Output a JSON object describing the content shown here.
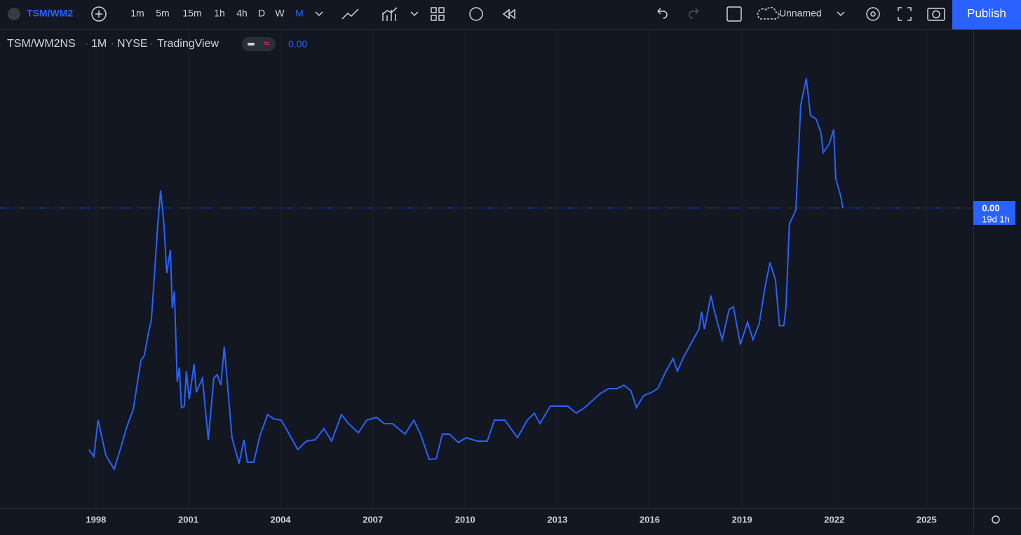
{
  "toolbar": {
    "symbol": "TSM/WM2",
    "intervals": [
      "1m",
      "5m",
      "15m",
      "1h",
      "4h",
      "D",
      "W",
      "M"
    ],
    "active_interval": "M",
    "layout_name": "Unnamed",
    "publish": "Publish"
  },
  "legend": {
    "symbol": "TSM/WM2NS",
    "interval": "1M",
    "exchange": "NYSE",
    "source": "TradingView",
    "value": "0.00"
  },
  "price_label": {
    "value": "0.00",
    "countdown": "19d 1h"
  },
  "chart_data": {
    "type": "line",
    "x": [
      1997.77,
      1997.93,
      1998.07,
      1998.32,
      1998.59,
      1998.8,
      1999.0,
      1999.21,
      1999.37,
      1999.46,
      1999.57,
      1999.73,
      1999.8,
      1999.89,
      2000.01,
      2000.1,
      2000.21,
      2000.3,
      2000.42,
      2000.48,
      2000.55,
      2000.64,
      2000.71,
      2000.78,
      2000.87,
      2000.94,
      2001.03,
      2001.19,
      2001.26,
      2001.46,
      2001.65,
      2001.83,
      2001.94,
      2002.06,
      2002.17,
      2002.26,
      2002.42,
      2002.65,
      2002.81,
      2002.92,
      2003.13,
      2003.33,
      2003.58,
      2003.77,
      2004.02,
      2004.22,
      2004.56,
      2004.84,
      2005.13,
      2005.41,
      2005.66,
      2005.98,
      2006.21,
      2006.53,
      2006.8,
      2007.12,
      2007.37,
      2007.64,
      2008.05,
      2008.33,
      2008.55,
      2008.83,
      2009.06,
      2009.26,
      2009.49,
      2009.78,
      2010.04,
      2010.4,
      2010.72,
      2010.95,
      2011.29,
      2011.7,
      2012.02,
      2012.25,
      2012.43,
      2012.77,
      2013.09,
      2013.34,
      2013.61,
      2013.89,
      2014.14,
      2014.39,
      2014.66,
      2014.94,
      2015.16,
      2015.39,
      2015.57,
      2015.8,
      2016.08,
      2016.26,
      2016.53,
      2016.76,
      2016.9,
      2017.1,
      2017.35,
      2017.6,
      2017.69,
      2017.78,
      2017.99,
      2018.08,
      2018.26,
      2018.36,
      2018.58,
      2018.72,
      2018.95,
      2019.18,
      2019.36,
      2019.56,
      2019.75,
      2019.91,
      2020.09,
      2020.22,
      2020.36,
      2020.43,
      2020.54,
      2020.75,
      2020.91,
      2021.09,
      2021.23,
      2021.41,
      2021.57,
      2021.64,
      2021.84,
      2021.98,
      2022.05,
      2022.21,
      2022.28
    ],
    "series": [
      {
        "name": "TSM/WM2NS",
        "color": "#2962ff",
        "values": [
          83,
          73,
          125,
          75,
          55,
          85,
          115,
          140,
          185,
          210,
          217,
          255,
          267,
          325,
          405,
          453,
          405,
          335,
          368,
          285,
          309,
          180,
          200,
          143,
          145,
          195,
          155,
          205,
          165,
          185,
          97,
          185,
          190,
          175,
          230,
          185,
          100,
          63,
          97,
          65,
          65,
          103,
          133,
          127,
          125,
          110,
          83,
          95,
          97,
          113,
          95,
          133,
          120,
          107,
          125,
          129,
          120,
          120,
          105,
          125,
          105,
          69,
          70,
          105,
          105,
          93,
          100,
          95,
          95,
          125,
          125,
          100,
          125,
          135,
          120,
          145,
          145,
          145,
          135,
          143,
          153,
          163,
          170,
          170,
          175,
          167,
          143,
          160,
          165,
          170,
          195,
          213,
          195,
          215,
          235,
          255,
          280,
          255,
          303,
          285,
          255,
          240,
          283,
          287,
          233,
          265,
          240,
          263,
          315,
          350,
          325,
          260,
          260,
          285,
          405,
          425,
          575,
          613,
          560,
          555,
          535,
          507,
          520,
          540,
          470,
          445,
          428
        ]
      }
    ],
    "xlim": [
      1994.88,
      2026.52
    ],
    "ylim": [
      0,
      680
    ],
    "xticks": [
      1998,
      2001,
      2004,
      2007,
      2010,
      2013,
      2016,
      2019,
      2022,
      2025
    ],
    "grid": true
  }
}
